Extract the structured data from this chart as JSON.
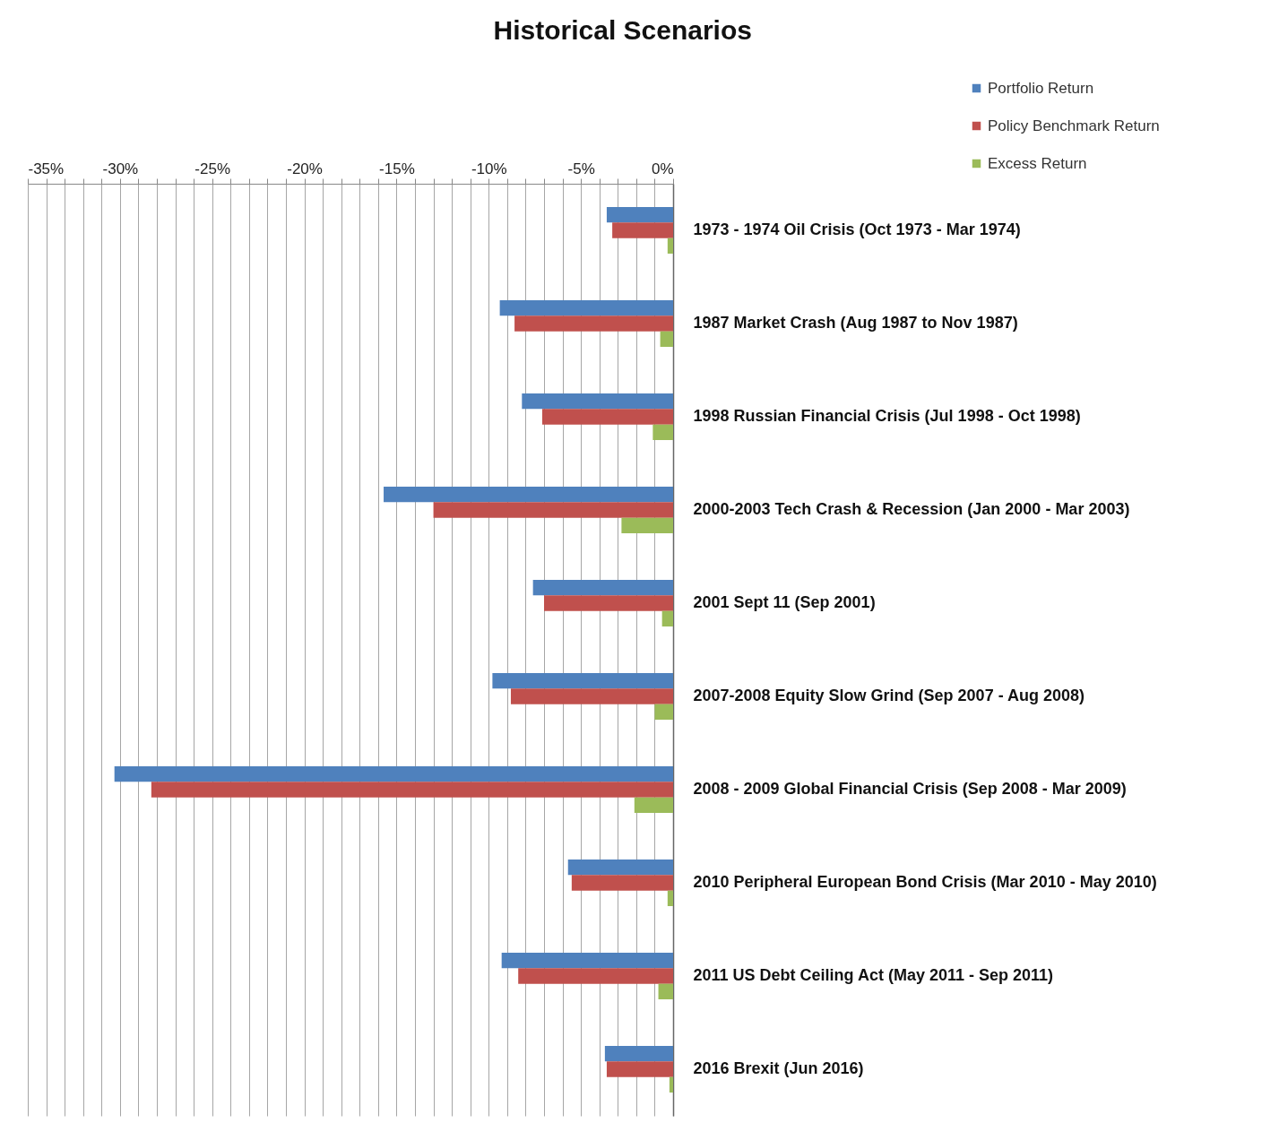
{
  "chart_data": {
    "type": "bar",
    "title": "Historical Scenarios",
    "orientation": "horizontal",
    "categories": [
      "1973 - 1974 Oil Crisis (Oct 1973 - Mar 1974)",
      "1987 Market Crash (Aug 1987 to Nov 1987)",
      "1998 Russian Financial Crisis (Jul 1998 - Oct 1998)",
      "2000-2003 Tech Crash & Recession (Jan 2000 - Mar 2003)",
      "2001 Sept 11 (Sep 2001)",
      "2007-2008 Equity Slow Grind (Sep 2007 - Aug 2008)",
      "2008 - 2009 Global Financial Crisis (Sep 2008 - Mar 2009)",
      "2010 Peripheral European Bond Crisis (Mar 2010 - May 2010)",
      "2011 US Debt Ceiling Act (May 2011 - Sep 2011)",
      "2016 Brexit (Jun 2016)"
    ],
    "series": [
      {
        "name": "Portfolio Return",
        "color": "#4f81bd",
        "values": [
          -3.6,
          -9.4,
          -8.2,
          -15.7,
          -7.6,
          -9.8,
          -30.3,
          -5.7,
          -9.3,
          -3.7
        ]
      },
      {
        "name": "Policy Benchmark Return",
        "color": "#c0504d",
        "values": [
          -3.3,
          -8.6,
          -7.1,
          -13.0,
          -7.0,
          -8.8,
          -28.3,
          -5.5,
          -8.4,
          -3.6
        ]
      },
      {
        "name": "Excess Return",
        "color": "#9bbb59",
        "values": [
          -0.3,
          -0.7,
          -1.1,
          -2.8,
          -0.6,
          -1.0,
          -2.1,
          -0.3,
          -0.8,
          -0.2
        ]
      }
    ],
    "xlim": [
      -35,
      0
    ],
    "xticks": [
      {
        "value": -35,
        "label": "-35%"
      },
      {
        "value": -34,
        "label": null
      },
      {
        "value": -33,
        "label": null
      },
      {
        "value": -32,
        "label": null
      },
      {
        "value": -31,
        "label": null
      },
      {
        "value": -30,
        "label": "-30%"
      },
      {
        "value": -29,
        "label": null
      },
      {
        "value": -28,
        "label": null
      },
      {
        "value": -27,
        "label": null
      },
      {
        "value": -26,
        "label": null
      },
      {
        "value": -25,
        "label": "-25%"
      },
      {
        "value": -24,
        "label": null
      },
      {
        "value": -23,
        "label": null
      },
      {
        "value": -22,
        "label": null
      },
      {
        "value": -21,
        "label": null
      },
      {
        "value": -20,
        "label": "-20%"
      },
      {
        "value": -19,
        "label": null
      },
      {
        "value": -18,
        "label": null
      },
      {
        "value": -17,
        "label": null
      },
      {
        "value": -16,
        "label": null
      },
      {
        "value": -15,
        "label": "-15%"
      },
      {
        "value": -14,
        "label": null
      },
      {
        "value": -13,
        "label": null
      },
      {
        "value": -12,
        "label": null
      },
      {
        "value": -11,
        "label": null
      },
      {
        "value": -10,
        "label": "-10%"
      },
      {
        "value": -9,
        "label": null
      },
      {
        "value": -8,
        "label": null
      },
      {
        "value": -7,
        "label": null
      },
      {
        "value": -6,
        "label": null
      },
      {
        "value": -5,
        "label": "-5%"
      },
      {
        "value": -4,
        "label": null
      },
      {
        "value": -3,
        "label": null
      },
      {
        "value": -2,
        "label": null
      },
      {
        "value": -1,
        "label": null
      },
      {
        "value": 0,
        "label": "0%"
      }
    ],
    "grid": "x",
    "legend": "top right"
  }
}
